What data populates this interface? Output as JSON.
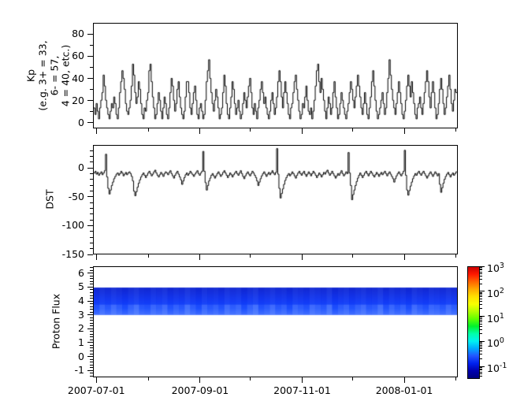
{
  "figure": {
    "bg": "#ffffff",
    "axis_color": "#000000",
    "trace_color": "#000000"
  },
  "x_axis": {
    "domain": [
      "2007-06-29",
      "2008-02-02"
    ],
    "major_ticks": [
      {
        "date": "2007-07-01",
        "label": "2007-07-01"
      },
      {
        "date": "2007-09-01",
        "label": "2007-09-01"
      },
      {
        "date": "2007-11-01",
        "label": "2007-11-01"
      },
      {
        "date": "2008-01-01",
        "label": "2008-01-01"
      }
    ],
    "minor_ticks": [
      "2007-08-01",
      "2007-10-01",
      "2007-12-01",
      "2008-02-01"
    ]
  },
  "chart_data": [
    {
      "id": "kp",
      "type": "line",
      "style": "step",
      "ylabel": "Kp\n(e.g. 3+ = 33,\n6- = 57,\n4 = 40, etc.)",
      "ylim": [
        -5,
        90
      ],
      "yticks": [
        0,
        20,
        40,
        60,
        80
      ],
      "ytick_minor_step": 10,
      "grid": false,
      "values": [
        13,
        7,
        17,
        10,
        3,
        13,
        20,
        27,
        43,
        33,
        20,
        13,
        7,
        3,
        10,
        17,
        13,
        23,
        17,
        7,
        3,
        13,
        27,
        37,
        47,
        40,
        30,
        17,
        10,
        7,
        13,
        20,
        33,
        53,
        43,
        27,
        17,
        23,
        37,
        30,
        17,
        7,
        3,
        13,
        10,
        20,
        27,
        47,
        53,
        37,
        23,
        13,
        3,
        7,
        17,
        27,
        20,
        10,
        3,
        13,
        23,
        17,
        7,
        3,
        13,
        27,
        40,
        33,
        20,
        10,
        17,
        30,
        37,
        23,
        13,
        7,
        3,
        10,
        23,
        37,
        37,
        27,
        13,
        7,
        17,
        27,
        33,
        20,
        7,
        3,
        13,
        17,
        10,
        3,
        7,
        20,
        37,
        47,
        57,
        40,
        27,
        17,
        10,
        20,
        30,
        23,
        13,
        3,
        7,
        13,
        27,
        43,
        33,
        17,
        7,
        3,
        13,
        23,
        37,
        30,
        17,
        7,
        13,
        20,
        10,
        3,
        7,
        17,
        27,
        20,
        13,
        23,
        33,
        40,
        27,
        13,
        7,
        17,
        10,
        3,
        13,
        20,
        30,
        37,
        27,
        17,
        23,
        13,
        7,
        3,
        10,
        20,
        27,
        17,
        7,
        13,
        23,
        37,
        47,
        37,
        23,
        13,
        27,
        37,
        27,
        17,
        7,
        3,
        13,
        17,
        27,
        37,
        43,
        30,
        20,
        10,
        3,
        7,
        17,
        13,
        23,
        33,
        20,
        10,
        7,
        13,
        3,
        10,
        20,
        33,
        47,
        53,
        37,
        27,
        40,
        30,
        20,
        10,
        3,
        13,
        23,
        17,
        7,
        13,
        27,
        37,
        23,
        13,
        3,
        7,
        17,
        27,
        20,
        13,
        7,
        3,
        10,
        17,
        27,
        37,
        30,
        20,
        13,
        23,
        33,
        43,
        33,
        23,
        13,
        7,
        17,
        27,
        17,
        7,
        3,
        13,
        23,
        37,
        47,
        33,
        20,
        10,
        3,
        7,
        13,
        20,
        27,
        17,
        7,
        13,
        27,
        40,
        57,
        43,
        30,
        20,
        13,
        7,
        17,
        27,
        37,
        27,
        17,
        7,
        3,
        10,
        20,
        33,
        43,
        33,
        23,
        37,
        27,
        17,
        7,
        3,
        13,
        17,
        23,
        13,
        7,
        17,
        27,
        37,
        47,
        37,
        23,
        13,
        27,
        37,
        27,
        13,
        3,
        7,
        17,
        30,
        40,
        30,
        17,
        7,
        13,
        23,
        33,
        43,
        30,
        17,
        10,
        20,
        30,
        27
      ]
    },
    {
      "id": "dst",
      "type": "line",
      "style": "step",
      "ylabel": "DST",
      "ylim": [
        -150,
        40
      ],
      "yticks": [
        0,
        -50,
        -100,
        -150
      ],
      "ytick_minor_step": 10,
      "grid": false,
      "values": [
        -8,
        -5,
        -10,
        -7,
        -12,
        -9,
        -6,
        -11,
        -8,
        -4,
        25,
        -15,
        -35,
        -45,
        -38,
        -30,
        -24,
        -18,
        -14,
        -10,
        -8,
        -12,
        -9,
        -5,
        -8,
        -13,
        -10,
        -7,
        -11,
        -8,
        -6,
        -9,
        -14,
        -22,
        -40,
        -48,
        -41,
        -33,
        -26,
        -20,
        -15,
        -11,
        -8,
        -12,
        -16,
        -12,
        -8,
        -5,
        -9,
        -13,
        -10,
        -6,
        -3,
        -8,
        -12,
        -15,
        -11,
        -7,
        -10,
        -14,
        -9,
        -6,
        -8,
        -11,
        -7,
        -4,
        -9,
        -13,
        -17,
        -12,
        -8,
        -5,
        -10,
        -15,
        -20,
        -28,
        -22,
        -16,
        -11,
        -8,
        -12,
        -9,
        -5,
        -8,
        -11,
        -14,
        -10,
        -7,
        -4,
        -9,
        -12,
        -8,
        -5,
        30,
        -5,
        -25,
        -38,
        -30,
        -22,
        -17,
        -12,
        -9,
        -13,
        -17,
        -13,
        -9,
        -6,
        -10,
        -14,
        -11,
        -7,
        -4,
        -8,
        -12,
        -16,
        -12,
        -8,
        -11,
        -15,
        -11,
        -8,
        -5,
        -9,
        -12,
        -8,
        -4,
        -9,
        -14,
        -18,
        -13,
        -9,
        -6,
        -10,
        -13,
        -9,
        -5,
        -8,
        -12,
        -16,
        -22,
        -30,
        -24,
        -18,
        -13,
        -9,
        -6,
        -10,
        -14,
        -10,
        -7,
        -11,
        -8,
        -4,
        -8,
        -11,
        -7,
        35,
        -10,
        -35,
        -52,
        -44,
        -36,
        -28,
        -21,
        -16,
        -12,
        -9,
        -13,
        -10,
        -6,
        -9,
        -13,
        -17,
        -12,
        -8,
        -5,
        -9,
        -12,
        -8,
        -5,
        -10,
        -14,
        -10,
        -6,
        -9,
        -13,
        -9,
        -5,
        -8,
        -12,
        -16,
        -12,
        -8,
        -11,
        -15,
        -11,
        -7,
        -10,
        -6,
        -3,
        -8,
        -12,
        -9,
        -5,
        -9,
        -13,
        -17,
        -13,
        -9,
        -12,
        -8,
        -4,
        -9,
        -13,
        -10,
        -6,
        -9,
        28,
        -8,
        -30,
        -55,
        -46,
        -38,
        -30,
        -23,
        -17,
        -12,
        -8,
        -12,
        -16,
        -12,
        -8,
        -5,
        -9,
        -13,
        -9,
        -5,
        -8,
        -12,
        -15,
        -11,
        -7,
        -10,
        -14,
        -10,
        -7,
        -11,
        -8,
        -5,
        -9,
        -13,
        -9,
        -6,
        -10,
        -14,
        -18,
        -24,
        -18,
        -13,
        -9,
        -6,
        -10,
        -13,
        -9,
        -5,
        32,
        -12,
        -38,
        -47,
        -39,
        -31,
        -24,
        -18,
        -13,
        -9,
        -12,
        -8,
        -5,
        -9,
        -12,
        -8,
        -5,
        -9,
        -13,
        -17,
        -13,
        -9,
        -6,
        -10,
        -14,
        -10,
        -6,
        -9,
        -13,
        -9,
        -28,
        -42,
        -34,
        -26,
        -19,
        -14,
        -10,
        -7,
        -11,
        -15,
        -11,
        -8,
        -12,
        -9,
        -6
      ]
    },
    {
      "id": "flux",
      "type": "heatmap",
      "ylabel": "Proton Flux",
      "ylim": [
        -1.5,
        6.5
      ],
      "yticks": [
        -1,
        0,
        1,
        2,
        3,
        4,
        5,
        6
      ],
      "ytick_minor_step": 0.2,
      "grid": false,
      "band": {
        "y_from": 3,
        "y_to": 5,
        "color_top": "#0013c8",
        "color_upper": "#0026f0",
        "color_mid": "#0038ff",
        "color_low": "#2f5eff",
        "stripe_color": "#7aa0ff",
        "stripes": [
          0.3,
          0.7,
          0.4,
          0.8,
          0.5,
          0.2,
          0.6,
          0.9,
          0.4,
          0.3,
          0.7,
          0.5,
          0.8,
          0.3,
          0.6,
          0.4,
          0.9,
          0.5,
          0.2,
          0.7,
          0.4,
          0.6,
          0.3,
          0.8,
          0.5,
          0.7,
          0.2,
          0.6,
          0.9,
          0.3,
          0.5,
          0.8,
          0.4,
          0.6,
          0.2,
          0.7,
          0.5,
          0.3,
          0.8,
          0.6,
          0.4,
          0.9,
          0.2,
          0.5,
          0.7,
          0.3,
          0.6,
          0.8,
          0.4,
          0.5,
          0.9,
          0.3,
          0.7,
          0.4,
          0.6,
          0.2,
          0.8,
          0.5,
          0.3,
          0.7,
          0.6,
          0.4,
          0.8,
          0.5
        ]
      },
      "colorbar": {
        "scale": "log",
        "exp_max": 3,
        "exp_min": -1.44,
        "decade_labels": [
          3,
          2,
          1,
          0,
          -1
        ],
        "label_base": "10",
        "stops_top_to_bottom": [
          "#cc0000",
          "#ff1a00",
          "#ff6600",
          "#ffaa00",
          "#ffe000",
          "#f8ff00",
          "#b4ff00",
          "#62ff00",
          "#00f22d",
          "#00ffaa",
          "#00f2f2",
          "#00aaff",
          "#2255ff",
          "#0022ee",
          "#0000b0",
          "#000080"
        ]
      }
    }
  ]
}
